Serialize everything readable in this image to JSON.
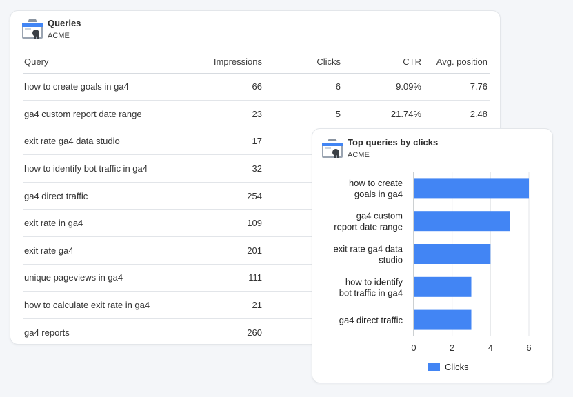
{
  "queries_card": {
    "title": "Queries",
    "subtitle": "ACME",
    "icon": "search-console-icon",
    "columns": [
      "Query",
      "Impressions",
      "Clicks",
      "CTR",
      "Avg. position"
    ],
    "rows": [
      [
        "how to create goals in ga4",
        "66",
        "6",
        "9.09%",
        "7.76"
      ],
      [
        "ga4 custom report date range",
        "23",
        "5",
        "21.74%",
        "2.48"
      ],
      [
        "exit rate ga4 data studio",
        "17",
        "",
        "",
        ""
      ],
      [
        "how to identify bot traffic in ga4",
        "32",
        "",
        "",
        ""
      ],
      [
        "ga4 direct traffic",
        "254",
        "",
        "",
        ""
      ],
      [
        "exit rate in ga4",
        "109",
        "",
        "",
        ""
      ],
      [
        "exit rate ga4",
        "201",
        "",
        "",
        ""
      ],
      [
        "unique pageviews in ga4",
        "111",
        "",
        "",
        ""
      ],
      [
        "how to calculate exit rate in ga4",
        "21",
        "",
        "",
        ""
      ],
      [
        "ga4 reports",
        "260",
        "",
        "",
        ""
      ]
    ]
  },
  "chart_card": {
    "title": "Top queries by clicks",
    "subtitle": "ACME",
    "icon": "search-console-icon"
  },
  "chart_data": {
    "type": "bar",
    "orientation": "horizontal",
    "categories": [
      [
        "how to create",
        "goals in ga4"
      ],
      [
        "ga4 custom",
        "report date range"
      ],
      [
        "exit rate ga4 data",
        "studio"
      ],
      [
        "how to identify",
        "bot traffic in ga4"
      ],
      [
        "ga4 direct traffic"
      ]
    ],
    "series": [
      {
        "name": "Clicks",
        "values": [
          6,
          5,
          4,
          3,
          3
        ],
        "color": "#4285f4"
      }
    ],
    "xlim": [
      0,
      6
    ],
    "xticks": [
      "0",
      "2",
      "4",
      "6"
    ],
    "grid": true,
    "legend": "bottom"
  }
}
